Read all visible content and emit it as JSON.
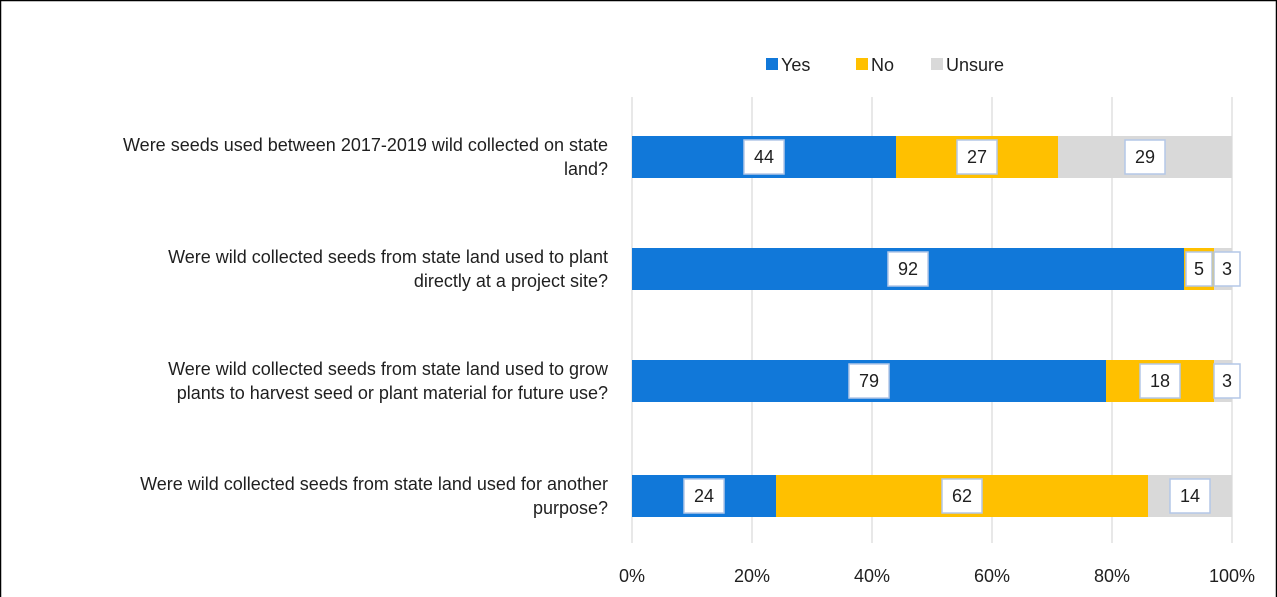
{
  "chart_data": {
    "type": "bar",
    "orientation": "horizontal",
    "stacked": "percent",
    "categories": [
      [
        "Were seeds used between 2017-2019 wild collected on state",
        "land?"
      ],
      [
        "Were wild collected seeds from state land used to plant",
        "directly at a project site?"
      ],
      [
        "Were wild collected seeds from state land used to grow",
        "plants to harvest seed or plant material for future use?"
      ],
      [
        "Were wild collected seeds from state land used for another",
        "purpose?"
      ]
    ],
    "series": [
      {
        "name": "Yes",
        "color": "#1178D9",
        "values": [
          44,
          92,
          79,
          24
        ]
      },
      {
        "name": "No",
        "color": "#FFC000",
        "values": [
          27,
          5,
          18,
          62
        ]
      },
      {
        "name": "Unsure",
        "color": "#D9D9D9",
        "values": [
          29,
          3,
          3,
          14
        ]
      }
    ],
    "xticks": [
      "0%",
      "20%",
      "40%",
      "60%",
      "80%",
      "100%"
    ],
    "xlim": [
      0,
      100
    ],
    "grid": true,
    "legend": "top"
  }
}
